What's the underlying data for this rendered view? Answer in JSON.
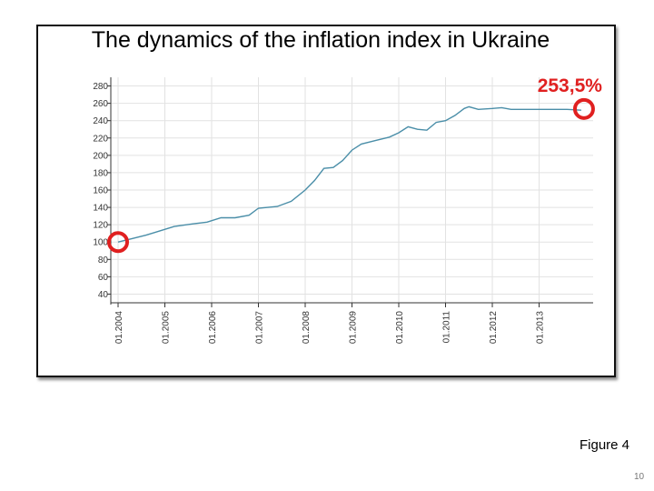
{
  "title": "The dynamics of the inflation index in Ukraine",
  "figure_caption": "Figure 4",
  "page_number": "10",
  "chart_data": {
    "type": "line",
    "title": "The dynamics of the inflation index in Ukraine",
    "xlabel": "",
    "ylabel": "",
    "ylim": [
      30,
      290
    ],
    "yticks": [
      40,
      60,
      80,
      100,
      120,
      140,
      160,
      180,
      200,
      220,
      240,
      260,
      280
    ],
    "x_ticks": [
      "01.2004",
      "01.2005",
      "01.2006",
      "01.2007",
      "01.2008",
      "01.2009",
      "01.2010",
      "01.2011",
      "01.2012",
      "01.2013"
    ],
    "grid": true,
    "series": [
      {
        "color": "#4a8ea8",
        "x": [
          2004.0,
          2004.3,
          2004.6,
          2004.9,
          2005.2,
          2005.6,
          2005.9,
          2006.2,
          2006.5,
          2006.8,
          2007.0,
          2007.4,
          2007.7,
          2008.0,
          2008.2,
          2008.4,
          2008.6,
          2008.8,
          2009.0,
          2009.2,
          2009.5,
          2009.8,
          2010.0,
          2010.2,
          2010.4,
          2010.6,
          2010.8,
          2011.0,
          2011.2,
          2011.4,
          2011.5,
          2011.7,
          2012.0,
          2012.2,
          2012.4,
          2012.7,
          2013.0,
          2013.3,
          2013.6,
          2013.9
        ],
        "values": [
          100,
          104,
          108,
          113,
          118,
          121,
          123,
          128,
          128,
          131,
          139,
          141,
          147,
          160,
          171,
          185,
          186,
          194,
          206,
          213,
          217,
          221,
          226,
          233,
          230,
          229,
          238,
          240,
          246,
          254,
          256,
          253,
          254,
          255,
          253,
          253,
          253,
          253,
          253,
          252
        ]
      }
    ],
    "annotations": [
      {
        "label": "",
        "x": 2004.0,
        "y": 100,
        "style": "red-circle"
      },
      {
        "label": "253,5%",
        "x": 2013.96,
        "y": 253.5,
        "style": "red-circle"
      }
    ],
    "accent_color": "#e02020"
  }
}
